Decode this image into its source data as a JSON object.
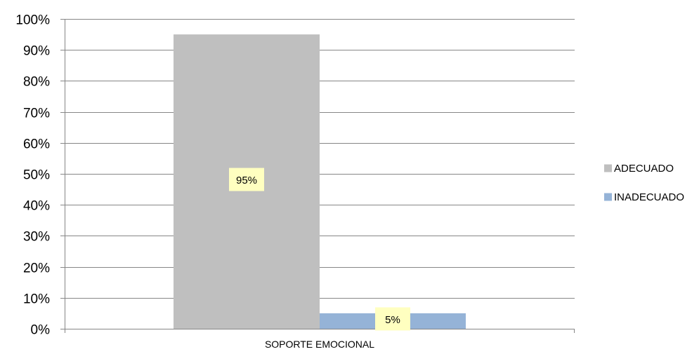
{
  "chart_data": {
    "type": "bar",
    "categories": [
      "SOPORTE EMOCIONAL"
    ],
    "series": [
      {
        "name": "ADECUADO",
        "values": [
          95
        ],
        "color": "#bfbfbf",
        "data_label": "95%"
      },
      {
        "name": "INADECUADO",
        "values": [
          5
        ],
        "color": "#95b3d7",
        "data_label": "5%"
      }
    ],
    "yticks": [
      "0%",
      "10%",
      "20%",
      "30%",
      "40%",
      "50%",
      "60%",
      "70%",
      "80%",
      "90%",
      "100%"
    ],
    "ylim": [
      0,
      100
    ],
    "grid": true,
    "legend_position": "right",
    "data_label_background": "#ffffc0",
    "title": "",
    "xlabel": "",
    "ylabel": ""
  }
}
